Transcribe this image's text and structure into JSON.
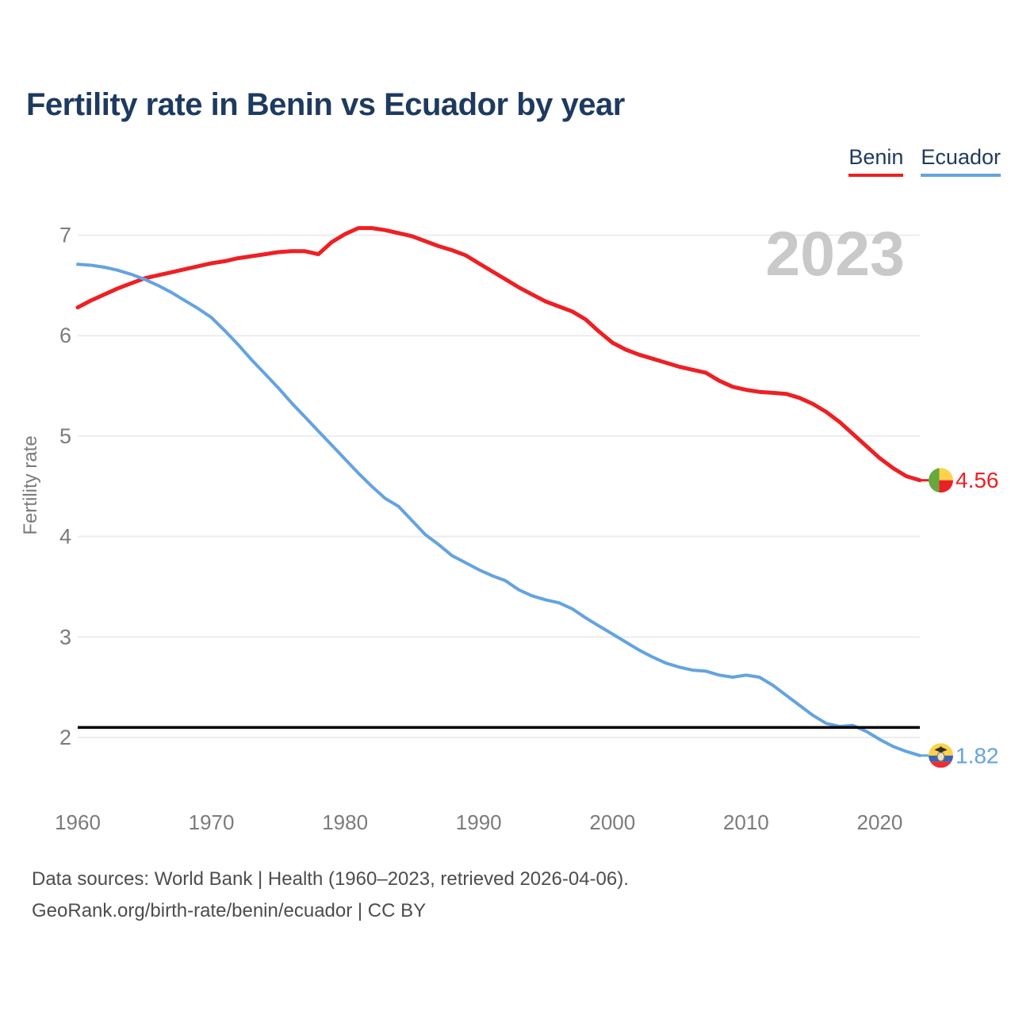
{
  "title": "Fertility rate in Benin vs Ecuador by year",
  "watermark": "2023",
  "legend": {
    "benin": {
      "label": "Benin",
      "color": "#ed2024"
    },
    "ecuador": {
      "label": "Ecuador",
      "color": "#64a3e0"
    }
  },
  "y_axis": {
    "label": "Fertility rate",
    "ticks": [
      7,
      6,
      5,
      4,
      3,
      2
    ]
  },
  "x_axis": {
    "ticks": [
      1960,
      1970,
      1980,
      1990,
      2000,
      2010,
      2020
    ]
  },
  "end_markers": {
    "benin": {
      "value": "4.56",
      "flag": "benin-flag-icon",
      "color": "#ed2024"
    },
    "ecuador": {
      "value": "1.82",
      "flag": "ecuador-flag-icon",
      "color": "#64a3e0"
    }
  },
  "footer": {
    "line1": "Data sources: World Bank | Health (1960–2023, retrieved 2026-04-06).",
    "line2": "GeoRank.org/birth-rate/benin/ecuador | CC BY"
  },
  "chart_data": {
    "type": "line",
    "title": "Fertility rate in Benin vs Ecuador by year",
    "xlabel": "",
    "ylabel": "Fertility rate",
    "x_range": [
      1960,
      2023
    ],
    "ylim": [
      2,
      7
    ],
    "grid": "horizontal",
    "legend_position": "top-right",
    "watermark": "2023",
    "annotations": {
      "reference_line_y": 2.1
    },
    "years": [
      1960,
      1961,
      1962,
      1963,
      1964,
      1965,
      1966,
      1967,
      1968,
      1969,
      1970,
      1971,
      1972,
      1973,
      1974,
      1975,
      1976,
      1977,
      1978,
      1979,
      1980,
      1981,
      1982,
      1983,
      1984,
      1985,
      1986,
      1987,
      1988,
      1989,
      1990,
      1991,
      1992,
      1993,
      1994,
      1995,
      1996,
      1997,
      1998,
      1999,
      2000,
      2001,
      2002,
      2003,
      2004,
      2005,
      2006,
      2007,
      2008,
      2009,
      2010,
      2011,
      2012,
      2013,
      2014,
      2015,
      2016,
      2017,
      2018,
      2019,
      2020,
      2021,
      2022,
      2023
    ],
    "series": [
      {
        "name": "Benin",
        "color": "#ed2024",
        "end_label": "4.56",
        "values": [
          6.28,
          6.35,
          6.41,
          6.47,
          6.52,
          6.57,
          6.6,
          6.63,
          6.66,
          6.69,
          6.72,
          6.74,
          6.77,
          6.79,
          6.81,
          6.83,
          6.84,
          6.84,
          6.81,
          6.93,
          7.01,
          7.07,
          7.07,
          7.05,
          7.02,
          6.99,
          6.94,
          6.89,
          6.85,
          6.8,
          6.72,
          6.64,
          6.56,
          6.48,
          6.41,
          6.34,
          6.29,
          6.24,
          6.16,
          6.04,
          5.93,
          5.86,
          5.81,
          5.77,
          5.73,
          5.69,
          5.66,
          5.63,
          5.55,
          5.49,
          5.46,
          5.44,
          5.43,
          5.42,
          5.38,
          5.32,
          5.24,
          5.14,
          5.02,
          4.9,
          4.78,
          4.68,
          4.6,
          4.56
        ]
      },
      {
        "name": "Ecuador",
        "color": "#64a3e0",
        "end_label": "1.82",
        "values": [
          6.71,
          6.7,
          6.68,
          6.65,
          6.61,
          6.56,
          6.5,
          6.43,
          6.35,
          6.27,
          6.18,
          6.05,
          5.91,
          5.76,
          5.62,
          5.48,
          5.33,
          5.19,
          5.05,
          4.91,
          4.77,
          4.63,
          4.5,
          4.38,
          4.3,
          4.16,
          4.02,
          3.92,
          3.81,
          3.74,
          3.67,
          3.61,
          3.56,
          3.47,
          3.41,
          3.37,
          3.34,
          3.28,
          3.19,
          3.11,
          3.03,
          2.95,
          2.87,
          2.8,
          2.74,
          2.7,
          2.67,
          2.66,
          2.62,
          2.6,
          2.62,
          2.6,
          2.52,
          2.42,
          2.32,
          2.22,
          2.14,
          2.11,
          2.12,
          2.06,
          1.98,
          1.91,
          1.86,
          1.82
        ]
      }
    ]
  },
  "colors": {
    "title": "#1e3a5f",
    "axis_text": "#7b7b7b",
    "gridline": "#ededed",
    "watermark": "#c9c9c9",
    "reference_line": "#000000",
    "footer_text": "#4d4d4f",
    "benin_flag": {
      "green": "#66a83d",
      "yellow": "#fcd34b",
      "red": "#ec1f27"
    },
    "ecuador_flag": {
      "yellow": "#fcd24c",
      "blue": "#3e62ad",
      "red": "#ee2c35"
    }
  }
}
